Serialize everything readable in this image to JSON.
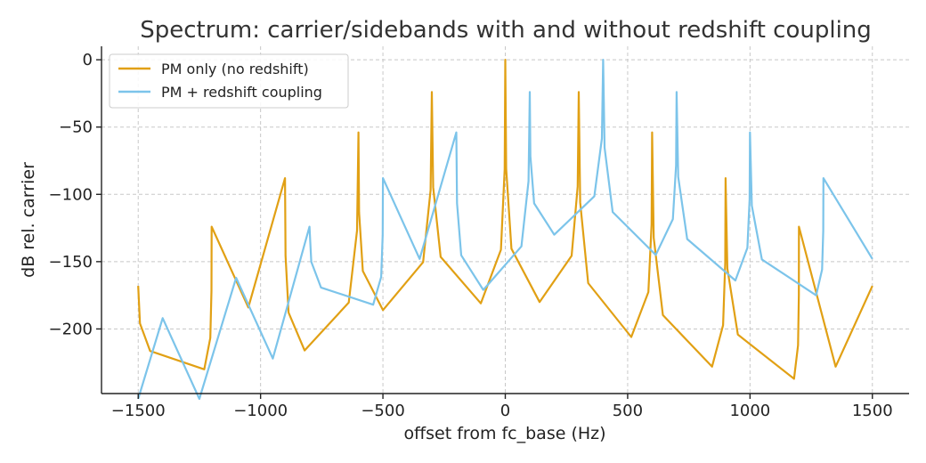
{
  "chart_data": {
    "type": "line",
    "title": "Spectrum: carrier/sidebands with and without redshift coupling",
    "xlabel": "offset from fc_base (Hz)",
    "ylabel": "dB rel. carrier",
    "xlim": [
      -1650,
      1650
    ],
    "ylim": [
      -248,
      10
    ],
    "xticks": [
      -1500,
      -1000,
      -500,
      0,
      500,
      1000,
      1500
    ],
    "xtick_labels": [
      "−1500",
      "−1000",
      "−500",
      "0",
      "500",
      "1000",
      "1500"
    ],
    "yticks": [
      0,
      -50,
      -100,
      -150,
      -200
    ],
    "ytick_labels": [
      "0",
      "−50",
      "−100",
      "−150",
      "−200"
    ],
    "grid": true,
    "legend_position": "top-left",
    "series": [
      {
        "name": "PM only (no redshift)",
        "color": "#E1A014",
        "x_range": [
          -1500,
          1500
        ],
        "peaks": [
          {
            "x": -1500,
            "y": -168
          },
          {
            "x": -1200,
            "y": -124
          },
          {
            "x": -900,
            "y": -88
          },
          {
            "x": -600,
            "y": -54
          },
          {
            "x": -300,
            "y": -24
          },
          {
            "x": 0,
            "y": 0
          },
          {
            "x": 300,
            "y": -24
          },
          {
            "x": 600,
            "y": -54
          },
          {
            "x": 900,
            "y": -88
          },
          {
            "x": 1200,
            "y": -124
          },
          {
            "x": 1500,
            "y": -168
          }
        ],
        "dips": [
          {
            "x": -1230,
            "y": -230
          },
          {
            "x": -820,
            "y": -216
          },
          {
            "x": -500,
            "y": -186
          },
          {
            "x": -100,
            "y": -181
          },
          {
            "x": 140,
            "y": -180
          },
          {
            "x": 515,
            "y": -206
          },
          {
            "x": 845,
            "y": -228
          },
          {
            "x": 1180,
            "y": -237
          }
        ]
      },
      {
        "name": "PM + redshift coupling",
        "color": "#7CC4EA",
        "x_range": [
          -1500,
          1500
        ],
        "peaks": [
          {
            "x": -1400,
            "y": -192
          },
          {
            "x": -1100,
            "y": -162
          },
          {
            "x": -800,
            "y": -124
          },
          {
            "x": -500,
            "y": -88
          },
          {
            "x": -200,
            "y": -54
          },
          {
            "x": 100,
            "y": -24
          },
          {
            "x": 400,
            "y": 0
          },
          {
            "x": 700,
            "y": -24
          },
          {
            "x": 1000,
            "y": -54
          },
          {
            "x": 1300,
            "y": -88
          }
        ],
        "dips": [
          {
            "x": -540,
            "y": -182
          },
          {
            "x": -90,
            "y": -171
          },
          {
            "x": 200,
            "y": -130
          },
          {
            "x": 615,
            "y": -145
          },
          {
            "x": 940,
            "y": -164
          },
          {
            "x": 1270,
            "y": -175
          }
        ]
      }
    ]
  }
}
